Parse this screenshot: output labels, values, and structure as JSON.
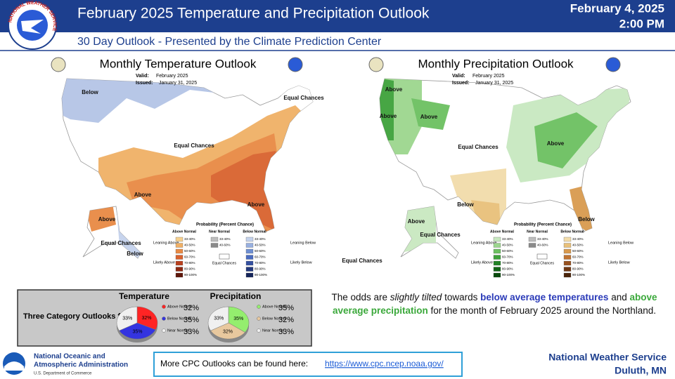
{
  "header": {
    "logo_text": "NATIONAL WEATHER SERVICE",
    "title": "February 2025 Temperature and Precipitation Outlook",
    "date": "February 4, 2025",
    "time": "2:00 PM",
    "subtitle": "30 Day Outlook - Presented by the Climate Prediction Center"
  },
  "maps": [
    {
      "title": "Monthly Temperature Outlook",
      "valid_label": "Valid:",
      "valid": "February 2025",
      "issued_label": "Issued:",
      "issued": "January 31, 2025",
      "labels": [
        "Below",
        "Equal Chances",
        "Equal Chances",
        "Above",
        "Above",
        "Above",
        "Equal Chances",
        "Below"
      ],
      "legend": {
        "title": "Probability (Percent Chance)",
        "left_top": "Leaning Above",
        "left_bottom": "Likely Above",
        "right_top": "Leaning Below",
        "right_bottom": "Likely Below",
        "equal": "Equal Chances",
        "columns": [
          {
            "name": "Above Normal",
            "bins": [
              "33-40%",
              "40-50%",
              "50-60%",
              "60-70%",
              "70-80%",
              "80-90%",
              "90-100%"
            ],
            "colors": [
              "#f6d08e",
              "#f0b066",
              "#e88a44",
              "#d9622e",
              "#b8401e",
              "#8c2812",
              "#5e160a"
            ]
          },
          {
            "name": "Near Normal",
            "bins": [
              "33-40%",
              "40-60%"
            ],
            "colors": [
              "#bdbdbd",
              "#8a8a8a"
            ]
          },
          {
            "name": "Below Normal",
            "bins": [
              "33-40%",
              "40-50%",
              "50-60%",
              "60-70%",
              "70-80%",
              "80-90%",
              "90-100%"
            ],
            "colors": [
              "#c4d2ec",
              "#98b0e0",
              "#6e8fd2",
              "#4a6cc0",
              "#3450a0",
              "#22387c",
              "#14245a"
            ]
          }
        ]
      }
    },
    {
      "title": "Monthly Precipitation Outlook",
      "valid_label": "Valid:",
      "valid": "February 2025",
      "issued_label": "Issued:",
      "issued": "January 31, 2025",
      "labels": [
        "Above",
        "Above",
        "Above",
        "Equal Chances",
        "Above",
        "Below",
        "Below",
        "Above",
        "Equal Chances",
        "Equal Chances"
      ],
      "legend": {
        "title": "Probability (Percent Chance)",
        "left_top": "Leaning Above",
        "left_bottom": "Likely Above",
        "right_top": "Leaning Below",
        "right_bottom": "Likely Below",
        "equal": "Equal Chances",
        "columns": [
          {
            "name": "Above Normal",
            "bins": [
              "33-40%",
              "40-50%",
              "50-60%",
              "60-70%",
              "70-80%",
              "80-90%",
              "90-100%"
            ],
            "colors": [
              "#c8e8c0",
              "#9cd68e",
              "#6cc060",
              "#3ea23a",
              "#228226",
              "#126416",
              "#084a0c"
            ]
          },
          {
            "name": "Near Normal",
            "bins": [
              "33-40%",
              "40-60%"
            ],
            "colors": [
              "#bdbdbd",
              "#8a8a8a"
            ]
          },
          {
            "name": "Below Normal",
            "bins": [
              "33-40%",
              "40-50%",
              "50-60%",
              "60-70%",
              "70-80%",
              "80-90%",
              "90-100%"
            ],
            "colors": [
              "#f2dcaa",
              "#e8c07a",
              "#d89a4e",
              "#c07432",
              "#985220",
              "#703814",
              "#4a240a"
            ]
          }
        ]
      }
    }
  ],
  "duluth": {
    "title": "Three Category Outlooks for Duluth",
    "charts": [
      {
        "type": "pie",
        "title": "Temperature",
        "categories": [
          "Above Normal",
          "Below Normal",
          "Near Normal"
        ],
        "values": [
          32,
          35,
          33
        ],
        "value_labels": [
          "32%",
          "35%",
          "33%"
        ],
        "colors": [
          "#ff2424",
          "#3434e0",
          "#f0f0f0"
        ]
      },
      {
        "type": "pie",
        "title": "Precipitation",
        "categories": [
          "Above Normal",
          "Below Normal",
          "Near Normal"
        ],
        "values": [
          35,
          32,
          33
        ],
        "value_labels": [
          "35%",
          "32%",
          "33%"
        ],
        "colors": [
          "#94ee6e",
          "#e8c89e",
          "#f0f0f0"
        ]
      }
    ]
  },
  "summary": [
    "The odds are ",
    "slightly tilted",
    " towards ",
    "below average temperatures",
    " and ",
    "above average precipitation",
    " for the month of February 2025 around the Northland."
  ],
  "footer": {
    "agency_line1": "National Oceanic and",
    "agency_line2": "Atmospheric Administration",
    "department": "U.S. Department of Commerce",
    "link_text": "More CPC Outlooks can be found here:",
    "link": "https://www.cpc.ncep.noaa.gov/",
    "office": "National Weather Service",
    "location": "Duluth, MN"
  }
}
